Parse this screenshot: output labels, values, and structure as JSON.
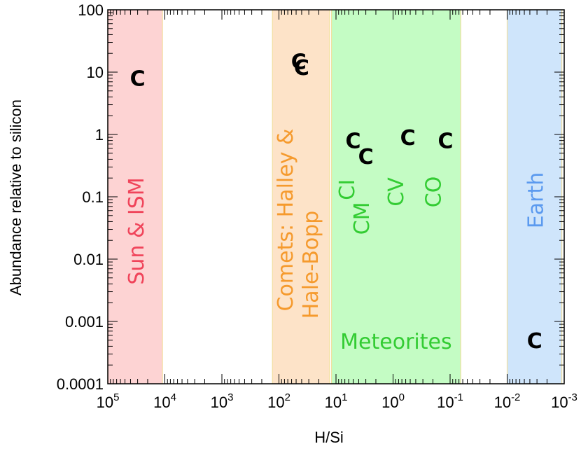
{
  "chart_data": {
    "type": "scatter",
    "xlabel": "H/Si",
    "ylabel": "Abundance relative to silicon",
    "x_scale": "log",
    "x_reversed": true,
    "xlim": [
      100000,
      0.001
    ],
    "y_scale": "log",
    "ylim": [
      0.0001,
      100
    ],
    "x_ticks": [
      {
        "v": 100000,
        "base": "10",
        "exp": "5"
      },
      {
        "v": 10000,
        "base": "10",
        "exp": "4"
      },
      {
        "v": 1000,
        "base": "10",
        "exp": "3"
      },
      {
        "v": 100,
        "base": "10",
        "exp": "2"
      },
      {
        "v": 10,
        "base": "10",
        "exp": "1"
      },
      {
        "v": 1,
        "base": "10",
        "exp": "0"
      },
      {
        "v": 0.1,
        "base": "10",
        "exp": "-1"
      },
      {
        "v": 0.01,
        "base": "10",
        "exp": "-2"
      },
      {
        "v": 0.001,
        "base": "10",
        "exp": "-3"
      }
    ],
    "y_ticks": [
      {
        "v": 100,
        "label": "100"
      },
      {
        "v": 10,
        "label": "10"
      },
      {
        "v": 1,
        "label": "1"
      },
      {
        "v": 0.1,
        "label": "0.1"
      },
      {
        "v": 0.01,
        "label": "0.01"
      },
      {
        "v": 0.001,
        "label": "0.001"
      },
      {
        "v": 0.0001,
        "label": "0.0001"
      }
    ],
    "regions": [
      {
        "name": "sun-ism",
        "label": "Sun & ISM",
        "x_from": 100000,
        "x_to": 11000,
        "fill": "#fdd3d3",
        "text_color": "#f0445a"
      },
      {
        "name": "comets",
        "label_lines": [
          "Comets: Halley &",
          "Hale-Bopp"
        ],
        "x_from": 130,
        "x_to": 13,
        "fill": "#fde3c8",
        "text_color": "#f59a2d"
      },
      {
        "name": "meteorites",
        "label": "Meteorites",
        "x_from": 12,
        "x_to": 0.065,
        "fill": "#c4fcc4",
        "text_color": "#33cc33"
      },
      {
        "name": "earth",
        "label": "Earth",
        "x_from": 0.01,
        "x_to": 0.0011,
        "fill": "#cfe5fb",
        "text_color": "#5b9aef"
      }
    ],
    "region_sublabels": [
      {
        "name": "ci",
        "label": "CI",
        "x": 6.5,
        "y": 0.13,
        "color": "#33cc33"
      },
      {
        "name": "cm",
        "label": "CM",
        "x": 3.6,
        "y": 0.045,
        "color": "#33cc33"
      },
      {
        "name": "cv",
        "label": "CV",
        "x": 0.9,
        "y": 0.12,
        "color": "#33cc33"
      },
      {
        "name": "co",
        "label": "CO",
        "x": 0.2,
        "y": 0.12,
        "color": "#33cc33"
      }
    ],
    "points": [
      {
        "name": "sun-ism",
        "marker": "C",
        "x": 30000,
        "y": 8
      },
      {
        "name": "comet-halley",
        "marker": "C",
        "x": 45,
        "y": 15
      },
      {
        "name": "comet-hale-bopp",
        "marker": "C",
        "x": 40,
        "y": 12
      },
      {
        "name": "ci",
        "marker": "C",
        "x": 5,
        "y": 0.8
      },
      {
        "name": "cm",
        "marker": "C",
        "x": 3,
        "y": 0.45
      },
      {
        "name": "cv",
        "marker": "C",
        "x": 0.55,
        "y": 0.9
      },
      {
        "name": "co",
        "marker": "C",
        "x": 0.12,
        "y": 0.8
      },
      {
        "name": "earth",
        "marker": "C",
        "x": 0.0033,
        "y": 0.0005
      }
    ]
  }
}
